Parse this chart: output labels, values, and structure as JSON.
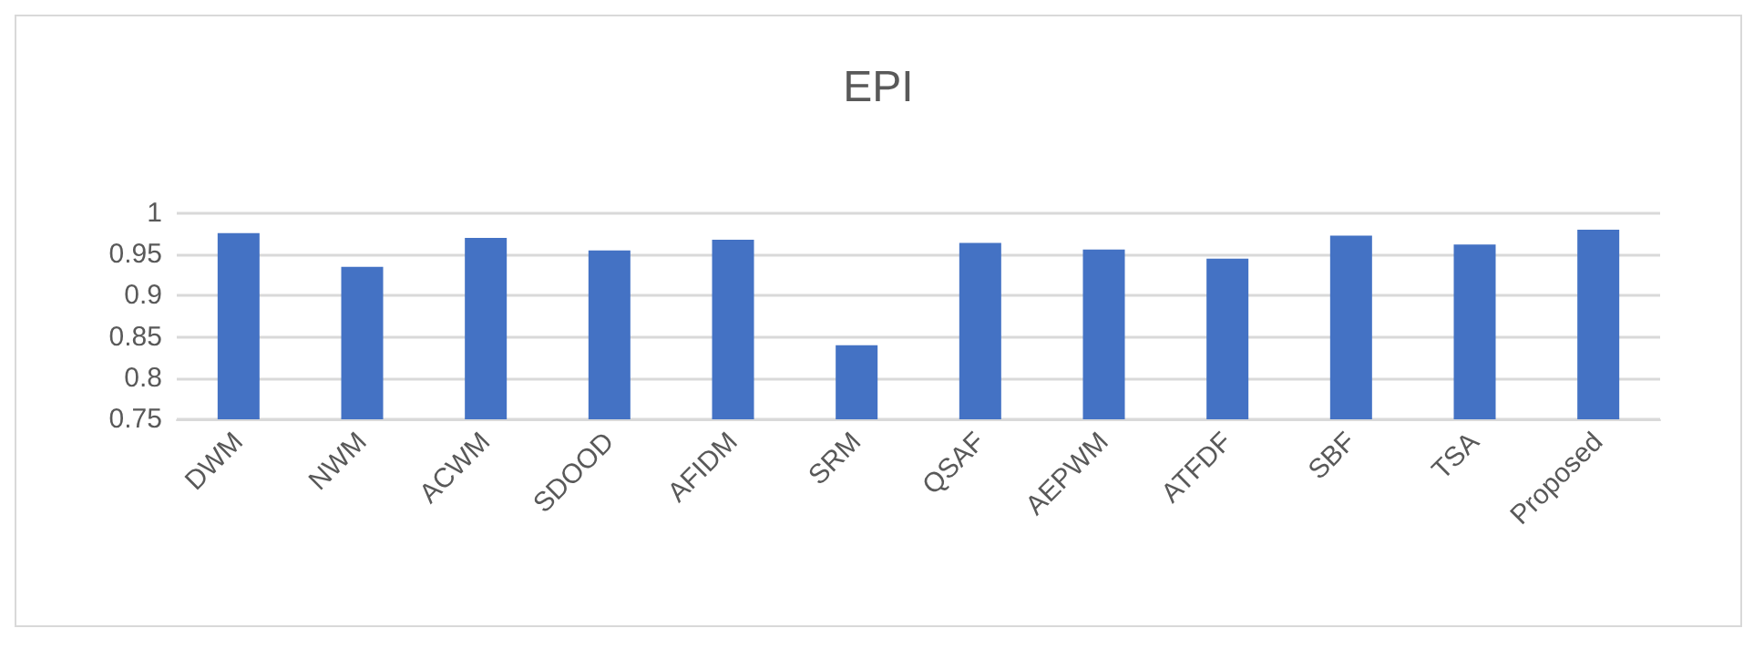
{
  "chart_data": {
    "type": "bar",
    "title": "EPI",
    "categories": [
      "DWM",
      "NWM",
      "ACWM",
      "SDOOD",
      "AFIDM",
      "SRM",
      "QSAF",
      "AEPWM",
      "ATFDF",
      "SBF",
      "TSA",
      "Proposed"
    ],
    "values": [
      0.976,
      0.935,
      0.97,
      0.955,
      0.968,
      0.84,
      0.964,
      0.956,
      0.945,
      0.973,
      0.962,
      0.98
    ],
    "color": "#4472c4",
    "ylim": [
      0.75,
      1
    ],
    "yticks": [
      0.75,
      0.8,
      0.85,
      0.9,
      0.95,
      1
    ],
    "grid": "y"
  }
}
